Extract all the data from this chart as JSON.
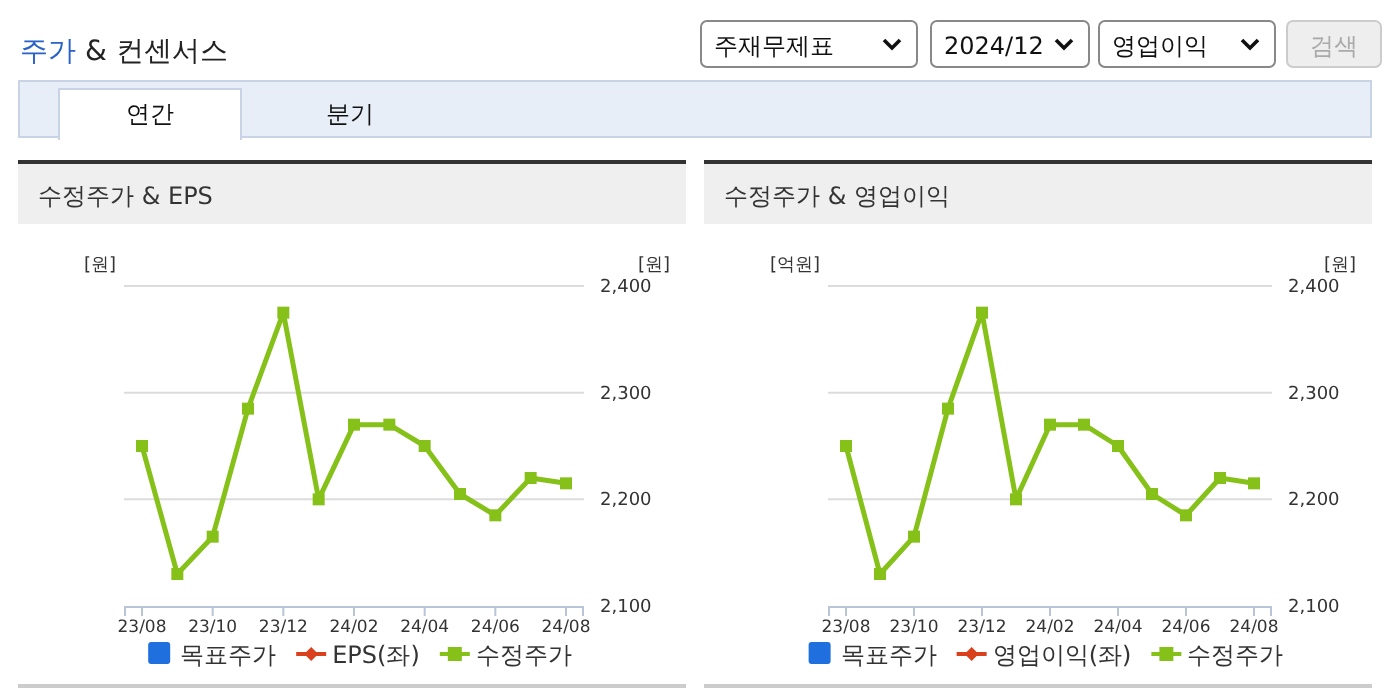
{
  "chart_data": [
    {
      "type": "other",
      "title": "주가 & 컨센서스",
      "annotations": [
        "주재무제표",
        "2024/12",
        "영업이익",
        "검색",
        "연간",
        "분기"
      ]
    },
    {
      "type": "line",
      "title": "수정주가 & EPS",
      "ylabel": "[원]",
      "y2label": "[원]",
      "categories": [
        "23/08",
        null,
        "23/10",
        null,
        "23/12",
        null,
        "24/02",
        null,
        "24/04",
        null,
        "24/06",
        null,
        "24/08"
      ],
      "series": [
        {
          "name": "목표주가",
          "type": "bar",
          "color": "#1f6fde",
          "values": [
            null,
            null,
            null,
            null,
            null,
            null,
            null,
            null,
            null,
            null,
            null,
            null,
            null
          ]
        },
        {
          "name": "EPS(좌)",
          "type": "line",
          "marker": "diamond",
          "color": "#d9401c",
          "values": [
            null,
            null,
            null,
            null,
            null,
            null,
            null,
            null,
            null,
            null,
            null,
            null,
            null
          ]
        },
        {
          "name": "수정주가",
          "type": "line",
          "marker": "square",
          "axis": "y2",
          "color": "#86c11a",
          "values": [
            2250,
            2130,
            2165,
            2285,
            2375,
            2200,
            2270,
            2270,
            2250,
            2205,
            2185,
            2220,
            2215
          ]
        }
      ],
      "y2lim": [
        2100,
        2400
      ],
      "y2ticks": [
        {
          "value": 2100,
          "label": "2,100"
        },
        {
          "value": 2200,
          "label": "2,200"
        },
        {
          "value": 2300,
          "label": "2,300"
        },
        {
          "value": 2400,
          "label": "2,400"
        }
      ],
      "grid": "y",
      "legend": "bottom"
    },
    {
      "type": "line",
      "title": "수정주가 & 영업이익",
      "ylabel": "[억원]",
      "y2label": "[원]",
      "categories": [
        "23/08",
        null,
        "23/10",
        null,
        "23/12",
        null,
        "24/02",
        null,
        "24/04",
        null,
        "24/06",
        null,
        "24/08"
      ],
      "series": [
        {
          "name": "목표주가",
          "type": "bar",
          "color": "#1f6fde",
          "values": [
            null,
            null,
            null,
            null,
            null,
            null,
            null,
            null,
            null,
            null,
            null,
            null,
            null
          ]
        },
        {
          "name": "영업이익(좌)",
          "type": "line",
          "marker": "diamond",
          "color": "#d9401c",
          "values": [
            null,
            null,
            null,
            null,
            null,
            null,
            null,
            null,
            null,
            null,
            null,
            null,
            null
          ]
        },
        {
          "name": "수정주가",
          "type": "line",
          "marker": "square",
          "axis": "y2",
          "color": "#86c11a",
          "values": [
            2250,
            2130,
            2165,
            2285,
            2375,
            2200,
            2270,
            2270,
            2250,
            2205,
            2185,
            2220,
            2215
          ]
        }
      ],
      "y2lim": [
        2100,
        2400
      ],
      "y2ticks": [
        {
          "value": 2100,
          "label": "2,100"
        },
        {
          "value": 2200,
          "label": "2,200"
        },
        {
          "value": 2300,
          "label": "2,300"
        },
        {
          "value": 2400,
          "label": "2,400"
        }
      ],
      "grid": "y",
      "legend": "bottom"
    }
  ]
}
